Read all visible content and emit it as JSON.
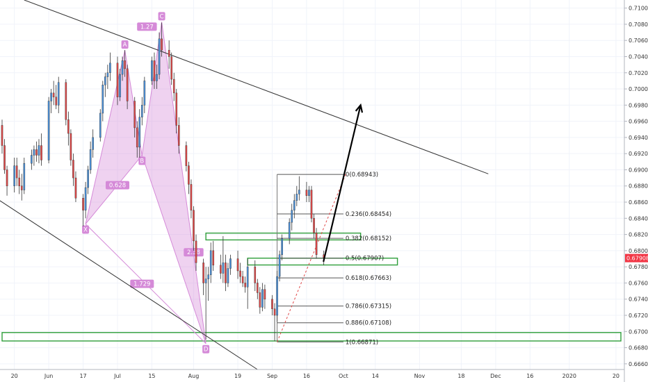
{
  "chart_data": {
    "type": "candlestick",
    "y_axis": {
      "ticks": [
        "0.71000",
        "0.70800",
        "0.70600",
        "0.70400",
        "0.70200",
        "0.70000",
        "0.69800",
        "0.69600",
        "0.69400",
        "0.69200",
        "0.69000",
        "0.68800",
        "0.68600",
        "0.68400",
        "0.68200",
        "0.68000",
        "0.67800",
        "0.67600",
        "0.67400",
        "0.67200",
        "0.67000",
        "0.66800",
        "0.66600"
      ],
      "range": [
        0.6653,
        0.711
      ],
      "side": "right"
    },
    "x_axis": {
      "labels": [
        "20",
        "Jun",
        "17",
        "Jul",
        "15",
        "Aug",
        "19",
        "Sep",
        "16",
        "Oct",
        "14",
        "Nov",
        "18",
        "Dec",
        "16",
        "2020",
        "20"
      ],
      "start": "2019-05-15",
      "end": "2020-01-22"
    },
    "current_price": {
      "label": "0.67908",
      "value": 0.67908,
      "color": "#f23645"
    },
    "up_color": "#4a90d9",
    "down_color": "#e04848",
    "candles": [
      {
        "date": "2019-05-15",
        "o": 0.6955,
        "h": 0.6962,
        "l": 0.692,
        "c": 0.693
      },
      {
        "date": "2019-05-16",
        "o": 0.693,
        "h": 0.6938,
        "l": 0.6895,
        "c": 0.69
      },
      {
        "date": "2019-05-17",
        "o": 0.69,
        "h": 0.6905,
        "l": 0.6868,
        "c": 0.688
      },
      {
        "date": "2019-05-20",
        "o": 0.688,
        "h": 0.6915,
        "l": 0.6872,
        "c": 0.6905
      },
      {
        "date": "2019-05-21",
        "o": 0.6905,
        "h": 0.6915,
        "l": 0.688,
        "c": 0.689
      },
      {
        "date": "2019-05-22",
        "o": 0.689,
        "h": 0.69,
        "l": 0.687,
        "c": 0.688
      },
      {
        "date": "2019-05-23",
        "o": 0.688,
        "h": 0.6895,
        "l": 0.6862,
        "c": 0.6875
      },
      {
        "date": "2019-05-24",
        "o": 0.6875,
        "h": 0.6915,
        "l": 0.687,
        "c": 0.6908
      },
      {
        "date": "2019-05-27",
        "o": 0.6908,
        "h": 0.6925,
        "l": 0.69,
        "c": 0.6918
      },
      {
        "date": "2019-05-28",
        "o": 0.6918,
        "h": 0.693,
        "l": 0.6905,
        "c": 0.6925
      },
      {
        "date": "2019-05-29",
        "o": 0.6925,
        "h": 0.6935,
        "l": 0.691,
        "c": 0.6918
      },
      {
        "date": "2019-05-30",
        "o": 0.6918,
        "h": 0.6938,
        "l": 0.6908,
        "c": 0.693
      },
      {
        "date": "2019-05-31",
        "o": 0.693,
        "h": 0.6945,
        "l": 0.6905,
        "c": 0.6912
      },
      {
        "date": "2019-06-03",
        "o": 0.6912,
        "h": 0.699,
        "l": 0.6908,
        "c": 0.6985
      },
      {
        "date": "2019-06-04",
        "o": 0.6985,
        "h": 0.7,
        "l": 0.697,
        "c": 0.6995
      },
      {
        "date": "2019-06-05",
        "o": 0.6995,
        "h": 0.701,
        "l": 0.698,
        "c": 0.699
      },
      {
        "date": "2019-06-06",
        "o": 0.699,
        "h": 0.7005,
        "l": 0.6975,
        "c": 0.698
      },
      {
        "date": "2019-06-07",
        "o": 0.698,
        "h": 0.7015,
        "l": 0.697,
        "c": 0.7008
      },
      {
        "date": "2019-06-10",
        "o": 0.7008,
        "h": 0.7012,
        "l": 0.6955,
        "c": 0.6962
      },
      {
        "date": "2019-06-11",
        "o": 0.6962,
        "h": 0.6972,
        "l": 0.693,
        "c": 0.6945
      },
      {
        "date": "2019-06-12",
        "o": 0.6945,
        "h": 0.695,
        "l": 0.6905,
        "c": 0.6912
      },
      {
        "date": "2019-06-13",
        "o": 0.6912,
        "h": 0.692,
        "l": 0.688,
        "c": 0.689
      },
      {
        "date": "2019-06-14",
        "o": 0.689,
        "h": 0.6898,
        "l": 0.686,
        "c": 0.6865
      },
      {
        "date": "2019-06-17",
        "o": 0.6865,
        "h": 0.687,
        "l": 0.683,
        "c": 0.685
      },
      {
        "date": "2019-06-18",
        "o": 0.685,
        "h": 0.6885,
        "l": 0.684,
        "c": 0.6878
      },
      {
        "date": "2019-06-19",
        "o": 0.6878,
        "h": 0.6905,
        "l": 0.687,
        "c": 0.69
      },
      {
        "date": "2019-06-20",
        "o": 0.69,
        "h": 0.6935,
        "l": 0.6895,
        "c": 0.6925
      },
      {
        "date": "2019-06-21",
        "o": 0.6925,
        "h": 0.695,
        "l": 0.6915,
        "c": 0.694
      },
      {
        "date": "2019-06-24",
        "o": 0.694,
        "h": 0.6975,
        "l": 0.6935,
        "c": 0.697
      },
      {
        "date": "2019-06-25",
        "o": 0.697,
        "h": 0.701,
        "l": 0.696,
        "c": 0.7005
      },
      {
        "date": "2019-06-26",
        "o": 0.7005,
        "h": 0.702,
        "l": 0.699,
        "c": 0.7015
      },
      {
        "date": "2019-06-27",
        "o": 0.7015,
        "h": 0.703,
        "l": 0.7,
        "c": 0.702
      },
      {
        "date": "2019-06-28",
        "o": 0.702,
        "h": 0.7045,
        "l": 0.701,
        "c": 0.7032
      },
      {
        "date": "2019-07-01",
        "o": 0.7032,
        "h": 0.704,
        "l": 0.698,
        "c": 0.699
      },
      {
        "date": "2019-07-02",
        "o": 0.699,
        "h": 0.7025,
        "l": 0.6985,
        "c": 0.7018
      },
      {
        "date": "2019-07-03",
        "o": 0.7018,
        "h": 0.704,
        "l": 0.701,
        "c": 0.7035
      },
      {
        "date": "2019-07-04",
        "o": 0.7035,
        "h": 0.7048,
        "l": 0.7015,
        "c": 0.7025
      },
      {
        "date": "2019-07-05",
        "o": 0.7025,
        "h": 0.703,
        "l": 0.6975,
        "c": 0.6985
      },
      {
        "date": "2019-07-08",
        "o": 0.6985,
        "h": 0.699,
        "l": 0.694,
        "c": 0.6952
      },
      {
        "date": "2019-07-09",
        "o": 0.6952,
        "h": 0.696,
        "l": 0.6915,
        "c": 0.6928
      },
      {
        "date": "2019-07-10",
        "o": 0.6928,
        "h": 0.6975,
        "l": 0.6915,
        "c": 0.6965
      },
      {
        "date": "2019-07-11",
        "o": 0.6965,
        "h": 0.699,
        "l": 0.6955,
        "c": 0.698
      },
      {
        "date": "2019-07-12",
        "o": 0.698,
        "h": 0.7015,
        "l": 0.697,
        "c": 0.701
      },
      {
        "date": "2019-07-15",
        "o": 0.701,
        "h": 0.704,
        "l": 0.7005,
        "c": 0.7035
      },
      {
        "date": "2019-07-16",
        "o": 0.7035,
        "h": 0.7045,
        "l": 0.7,
        "c": 0.701
      },
      {
        "date": "2019-07-17",
        "o": 0.701,
        "h": 0.703,
        "l": 0.7,
        "c": 0.7018
      },
      {
        "date": "2019-07-18",
        "o": 0.7018,
        "h": 0.707,
        "l": 0.7012,
        "c": 0.7062
      },
      {
        "date": "2019-07-19",
        "o": 0.7062,
        "h": 0.7082,
        "l": 0.704,
        "c": 0.7048
      },
      {
        "date": "2019-07-22",
        "o": 0.7048,
        "h": 0.706,
        "l": 0.7025,
        "c": 0.704
      },
      {
        "date": "2019-07-23",
        "o": 0.704,
        "h": 0.7045,
        "l": 0.7005,
        "c": 0.7012
      },
      {
        "date": "2019-07-24",
        "o": 0.7012,
        "h": 0.702,
        "l": 0.6985,
        "c": 0.6995
      },
      {
        "date": "2019-07-25",
        "o": 0.6995,
        "h": 0.7,
        "l": 0.6945,
        "c": 0.6955
      },
      {
        "date": "2019-07-26",
        "o": 0.6955,
        "h": 0.6965,
        "l": 0.692,
        "c": 0.693
      },
      {
        "date": "2019-07-29",
        "o": 0.693,
        "h": 0.6935,
        "l": 0.6898,
        "c": 0.6905
      },
      {
        "date": "2019-07-30",
        "o": 0.6905,
        "h": 0.691,
        "l": 0.687,
        "c": 0.6882
      },
      {
        "date": "2019-07-31",
        "o": 0.6882,
        "h": 0.6888,
        "l": 0.684,
        "c": 0.685
      },
      {
        "date": "2019-08-01",
        "o": 0.685,
        "h": 0.6855,
        "l": 0.68,
        "c": 0.6812
      },
      {
        "date": "2019-08-02",
        "o": 0.6812,
        "h": 0.682,
        "l": 0.6775,
        "c": 0.6785
      },
      {
        "date": "2019-08-05",
        "o": 0.6785,
        "h": 0.679,
        "l": 0.6745,
        "c": 0.676
      },
      {
        "date": "2019-08-06",
        "o": 0.676,
        "h": 0.678,
        "l": 0.669,
        "c": 0.6765
      },
      {
        "date": "2019-08-07",
        "o": 0.6765,
        "h": 0.678,
        "l": 0.6738,
        "c": 0.677
      },
      {
        "date": "2019-08-08",
        "o": 0.677,
        "h": 0.681,
        "l": 0.676,
        "c": 0.68
      },
      {
        "date": "2019-08-09",
        "o": 0.68,
        "h": 0.6812,
        "l": 0.6775,
        "c": 0.6782
      },
      {
        "date": "2019-08-12",
        "o": 0.6782,
        "h": 0.6795,
        "l": 0.6765,
        "c": 0.6772
      },
      {
        "date": "2019-08-13",
        "o": 0.6772,
        "h": 0.6818,
        "l": 0.676,
        "c": 0.6785
      },
      {
        "date": "2019-08-14",
        "o": 0.6785,
        "h": 0.6795,
        "l": 0.675,
        "c": 0.676
      },
      {
        "date": "2019-08-15",
        "o": 0.676,
        "h": 0.6785,
        "l": 0.6755,
        "c": 0.6778
      },
      {
        "date": "2019-08-16",
        "o": 0.6778,
        "h": 0.6795,
        "l": 0.677,
        "c": 0.679
      },
      {
        "date": "2019-08-19",
        "o": 0.679,
        "h": 0.68,
        "l": 0.6765,
        "c": 0.6775
      },
      {
        "date": "2019-08-20",
        "o": 0.6775,
        "h": 0.6785,
        "l": 0.676,
        "c": 0.6768
      },
      {
        "date": "2019-08-21",
        "o": 0.6768,
        "h": 0.6775,
        "l": 0.6755,
        "c": 0.676
      },
      {
        "date": "2019-08-22",
        "o": 0.676,
        "h": 0.6768,
        "l": 0.6748,
        "c": 0.6755
      },
      {
        "date": "2019-08-23",
        "o": 0.6755,
        "h": 0.679,
        "l": 0.6728,
        "c": 0.678
      },
      {
        "date": "2019-08-26",
        "o": 0.678,
        "h": 0.6788,
        "l": 0.675,
        "c": 0.676
      },
      {
        "date": "2019-08-27",
        "o": 0.676,
        "h": 0.6765,
        "l": 0.674,
        "c": 0.6748
      },
      {
        "date": "2019-08-28",
        "o": 0.6748,
        "h": 0.6755,
        "l": 0.6722,
        "c": 0.673
      },
      {
        "date": "2019-08-29",
        "o": 0.673,
        "h": 0.676,
        "l": 0.6725,
        "c": 0.6752
      },
      {
        "date": "2019-08-30",
        "o": 0.6752,
        "h": 0.6758,
        "l": 0.6728,
        "c": 0.674
      },
      {
        "date": "2019-09-02",
        "o": 0.674,
        "h": 0.6745,
        "l": 0.672,
        "c": 0.6728
      },
      {
        "date": "2019-09-03",
        "o": 0.6728,
        "h": 0.6735,
        "l": 0.6688,
        "c": 0.672
      },
      {
        "date": "2019-09-04",
        "o": 0.672,
        "h": 0.6775,
        "l": 0.6712,
        "c": 0.6768
      },
      {
        "date": "2019-09-05",
        "o": 0.6768,
        "h": 0.68,
        "l": 0.6762,
        "c": 0.6795
      },
      {
        "date": "2019-09-06",
        "o": 0.6795,
        "h": 0.682,
        "l": 0.6788,
        "c": 0.6815
      },
      {
        "date": "2019-09-09",
        "o": 0.6815,
        "h": 0.684,
        "l": 0.6808,
        "c": 0.6835
      },
      {
        "date": "2019-09-10",
        "o": 0.6835,
        "h": 0.6858,
        "l": 0.6825,
        "c": 0.685
      },
      {
        "date": "2019-09-11",
        "o": 0.685,
        "h": 0.687,
        "l": 0.684,
        "c": 0.6862
      },
      {
        "date": "2019-09-12",
        "o": 0.6862,
        "h": 0.688,
        "l": 0.6855,
        "c": 0.687
      },
      {
        "date": "2019-09-13",
        "o": 0.687,
        "h": 0.6892,
        "l": 0.6862,
        "c": 0.6875
      },
      {
        "date": "2019-09-16",
        "o": 0.6875,
        "h": 0.6885,
        "l": 0.686,
        "c": 0.6868
      },
      {
        "date": "2019-09-17",
        "o": 0.6868,
        "h": 0.688,
        "l": 0.686,
        "c": 0.6875
      },
      {
        "date": "2019-09-18",
        "o": 0.6875,
        "h": 0.688,
        "l": 0.6835,
        "c": 0.684
      },
      {
        "date": "2019-09-19",
        "o": 0.684,
        "h": 0.6845,
        "l": 0.6815,
        "c": 0.6822
      },
      {
        "date": "2019-09-20",
        "o": 0.6822,
        "h": 0.6828,
        "l": 0.679,
        "c": 0.6795
      },
      {
        "date": "2019-09-23",
        "o": 0.6795,
        "h": 0.68,
        "l": 0.6782,
        "c": 0.6791
      }
    ],
    "fibonacci": {
      "levels": [
        {
          "label": "0(0.68943)",
          "value": 0.68943
        },
        {
          "label": "0.236(0.68454)",
          "value": 0.68454
        },
        {
          "label": "0.382(0.68152)",
          "value": 0.68152
        },
        {
          "label": "0.5(0.67907)",
          "value": 0.67907
        },
        {
          "label": "0.618(0.67663)",
          "value": 0.67663
        },
        {
          "label": "0.786(0.67315)",
          "value": 0.67315
        },
        {
          "label": "0.886(0.67108)",
          "value": 0.67108
        },
        {
          "label": "1(0.66871)",
          "value": 0.66871
        }
      ],
      "start_date": "2019-09-04",
      "end_date": "2019-10-01"
    },
    "harmonic_pattern": {
      "color": "#d58ad8",
      "points": [
        {
          "label": "X",
          "date": "2019-06-18",
          "value": 0.6833
        },
        {
          "label": "A",
          "date": "2019-07-04",
          "value": 0.7048
        },
        {
          "label": "B",
          "date": "2019-07-11",
          "value": 0.6918
        },
        {
          "label": "C",
          "date": "2019-07-19",
          "value": 0.7083
        },
        {
          "label": "D",
          "date": "2019-08-06",
          "value": 0.6685
        }
      ],
      "ratios": [
        {
          "label": "0.628",
          "date": "2019-07-01",
          "value": 0.6881
        },
        {
          "label": "1.27",
          "date": "2019-07-13",
          "value": 0.7077
        },
        {
          "label": "2.38",
          "date": "2019-08-01",
          "value": 0.6798
        },
        {
          "label": "1.729",
          "date": "2019-07-11",
          "value": 0.6759
        }
      ]
    },
    "trendlines": [
      {
        "name": "upper-trendline",
        "from": {
          "date": "2019-05-24",
          "value": 0.711
        },
        "to": {
          "date": "2019-11-29",
          "value": 0.6895
        },
        "color": "#333333"
      },
      {
        "name": "lower-trendline",
        "from": {
          "date": "2019-05-12",
          "value": 0.6866
        },
        "to": {
          "date": "2019-08-27",
          "value": 0.6653
        },
        "color": "#333333"
      }
    ],
    "zones": [
      {
        "name": "zone-0682",
        "from": "2019-08-06",
        "to": "2019-10-08",
        "low": 0.6815,
        "high": 0.682,
        "color": "#2e9e3a"
      },
      {
        "name": "zone-0679",
        "from": "2019-08-23",
        "to": "2019-10-23",
        "low": 0.6784,
        "high": 0.6789,
        "color": "#2e9e3a"
      },
      {
        "name": "zone-0670",
        "from": "2019-05-15",
        "to": "2020-01-22",
        "low": 0.669,
        "high": 0.6697,
        "color": "#2e9e3a"
      }
    ],
    "projection": {
      "from": {
        "date": "2019-09-24",
        "value": 0.6788
      },
      "to": {
        "date": "2019-10-08",
        "value": 0.698
      },
      "color": "#000000"
    },
    "dashed_line": {
      "from": {
        "date": "2019-09-04",
        "value": 0.6687
      },
      "to": {
        "date": "2019-10-02",
        "value": 0.6895
      },
      "color": "#e04848"
    }
  }
}
